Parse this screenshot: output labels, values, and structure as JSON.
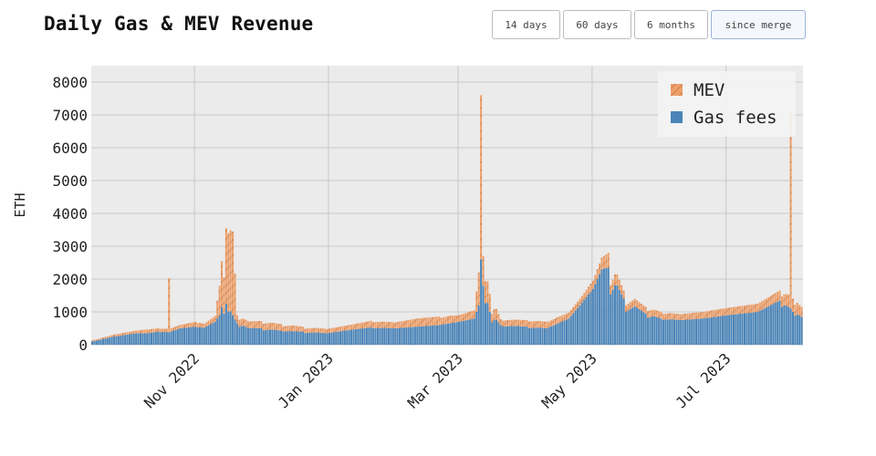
{
  "title": "Daily Gas & MEV Revenue",
  "range_buttons": [
    {
      "label": "14 days"
    },
    {
      "label": "60 days"
    },
    {
      "label": "6 months"
    },
    {
      "label": "since merge",
      "active": true
    }
  ],
  "colors": {
    "gas": "#4a84b8",
    "mev": "#eda06b",
    "plot_bg": "#ebebeb",
    "grid": "#c8c8c8",
    "hatch": "#c9773f"
  },
  "chart_data": {
    "type": "bar",
    "stacked": true,
    "ylabel": "ETH",
    "ylim": [
      0,
      8500
    ],
    "yticks": [
      0,
      1000,
      2000,
      3000,
      4000,
      5000,
      6000,
      7000,
      8000
    ],
    "x_start": "2022-09-15",
    "x_end": "2023-08-04",
    "xticks": [
      {
        "date": "2022-11-01",
        "label": "Nov 2022"
      },
      {
        "date": "2023-01-01",
        "label": "Jan 2023"
      },
      {
        "date": "2023-03-01",
        "label": "Mar 2023"
      },
      {
        "date": "2023-05-01",
        "label": "May 2023"
      },
      {
        "date": "2023-07-01",
        "label": "Jul 2023"
      }
    ],
    "grid": true,
    "legend_position": "top-right",
    "series": [
      {
        "name": "MEV",
        "color": "#eda06b",
        "points": [
          [
            "2022-09-15",
            30
          ],
          [
            "2022-09-25",
            60
          ],
          [
            "2022-10-05",
            80
          ],
          [
            "2022-10-10",
            120
          ],
          [
            "2022-10-15",
            100
          ],
          [
            "2022-10-20",
            1650
          ],
          [
            "2022-10-25",
            100
          ],
          [
            "2022-11-01",
            150
          ],
          [
            "2022-11-05",
            120
          ],
          [
            "2022-11-10",
            180
          ],
          [
            "2022-11-12",
            900
          ],
          [
            "2022-11-13",
            1400
          ],
          [
            "2022-11-14",
            1100
          ],
          [
            "2022-11-15",
            2300
          ],
          [
            "2022-11-18",
            2550
          ],
          [
            "2022-11-20",
            250
          ],
          [
            "2022-11-25",
            200
          ],
          [
            "2022-12-01",
            220
          ],
          [
            "2022-12-10",
            200
          ],
          [
            "2022-12-20",
            150
          ],
          [
            "2022-12-31",
            130
          ],
          [
            "2023-01-10",
            150
          ],
          [
            "2023-01-20",
            200
          ],
          [
            "2023-01-31",
            180
          ],
          [
            "2023-02-10",
            250
          ],
          [
            "2023-02-20",
            260
          ],
          [
            "2023-03-01",
            200
          ],
          [
            "2023-03-08",
            250
          ],
          [
            "2023-03-10",
            1000
          ],
          [
            "2023-03-11",
            5000
          ],
          [
            "2023-03-12",
            900
          ],
          [
            "2023-03-15",
            550
          ],
          [
            "2023-03-20",
            180
          ],
          [
            "2023-04-01",
            200
          ],
          [
            "2023-04-10",
            200
          ],
          [
            "2023-04-20",
            180
          ],
          [
            "2023-04-25",
            200
          ],
          [
            "2023-05-01",
            250
          ],
          [
            "2023-05-05",
            350
          ],
          [
            "2023-05-08",
            450
          ],
          [
            "2023-05-15",
            250
          ],
          [
            "2023-05-25",
            200
          ],
          [
            "2023-06-01",
            200
          ],
          [
            "2023-06-10",
            180
          ],
          [
            "2023-06-20",
            200
          ],
          [
            "2023-07-01",
            220
          ],
          [
            "2023-07-15",
            250
          ],
          [
            "2023-07-25",
            300
          ],
          [
            "2023-07-30",
            6000
          ],
          [
            "2023-07-31",
            400
          ],
          [
            "2023-08-04",
            300
          ]
        ]
      },
      {
        "name": "Gas fees",
        "color": "#4a84b8",
        "points": [
          [
            "2022-09-15",
            100
          ],
          [
            "2022-09-25",
            250
          ],
          [
            "2022-10-05",
            350
          ],
          [
            "2022-10-10",
            350
          ],
          [
            "2022-10-15",
            400
          ],
          [
            "2022-10-20",
            380
          ],
          [
            "2022-10-25",
            500
          ],
          [
            "2022-11-01",
            550
          ],
          [
            "2022-11-05",
            520
          ],
          [
            "2022-11-10",
            700
          ],
          [
            "2022-11-12",
            900
          ],
          [
            "2022-11-13",
            1150
          ],
          [
            "2022-11-14",
            950
          ],
          [
            "2022-11-15",
            1250
          ],
          [
            "2022-11-18",
            900
          ],
          [
            "2022-11-20",
            650
          ],
          [
            "2022-11-25",
            520
          ],
          [
            "2022-12-01",
            500
          ],
          [
            "2022-12-10",
            430
          ],
          [
            "2022-12-20",
            400
          ],
          [
            "2022-12-31",
            350
          ],
          [
            "2023-01-10",
            450
          ],
          [
            "2023-01-20",
            530
          ],
          [
            "2023-01-31",
            500
          ],
          [
            "2023-02-10",
            550
          ],
          [
            "2023-02-20",
            600
          ],
          [
            "2023-03-01",
            700
          ],
          [
            "2023-03-08",
            800
          ],
          [
            "2023-03-10",
            1200
          ],
          [
            "2023-03-11",
            2600
          ],
          [
            "2023-03-12",
            1800
          ],
          [
            "2023-03-15",
            1000
          ],
          [
            "2023-03-20",
            600
          ],
          [
            "2023-04-01",
            550
          ],
          [
            "2023-04-10",
            500
          ],
          [
            "2023-04-20",
            800
          ],
          [
            "2023-04-25",
            1200
          ],
          [
            "2023-05-01",
            1700
          ],
          [
            "2023-05-05",
            2300
          ],
          [
            "2023-05-08",
            2350
          ],
          [
            "2023-05-15",
            1400
          ],
          [
            "2023-05-25",
            950
          ],
          [
            "2023-06-01",
            800
          ],
          [
            "2023-06-10",
            750
          ],
          [
            "2023-06-20",
            800
          ],
          [
            "2023-07-01",
            900
          ],
          [
            "2023-07-15",
            1000
          ],
          [
            "2023-07-25",
            1350
          ],
          [
            "2023-07-30",
            1100
          ],
          [
            "2023-07-31",
            1000
          ],
          [
            "2023-08-04",
            850
          ]
        ]
      }
    ]
  }
}
